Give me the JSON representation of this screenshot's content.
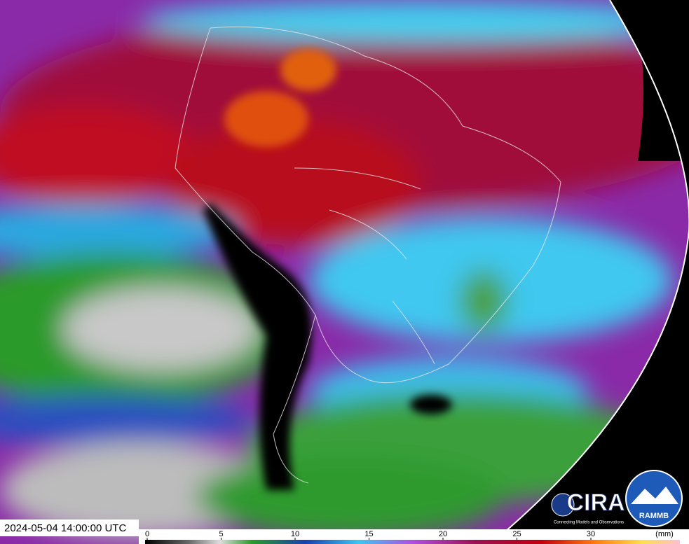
{
  "timestamp": "2024-05-04 14:00:00 UTC",
  "colorbar": {
    "ticks": [
      0,
      5,
      10,
      15,
      20,
      25,
      30
    ],
    "unit": "(mm)"
  },
  "logos": {
    "cira": "CIRA",
    "cira_tagline": "Connecting Models and Observations",
    "rammb": "RAMMB"
  }
}
